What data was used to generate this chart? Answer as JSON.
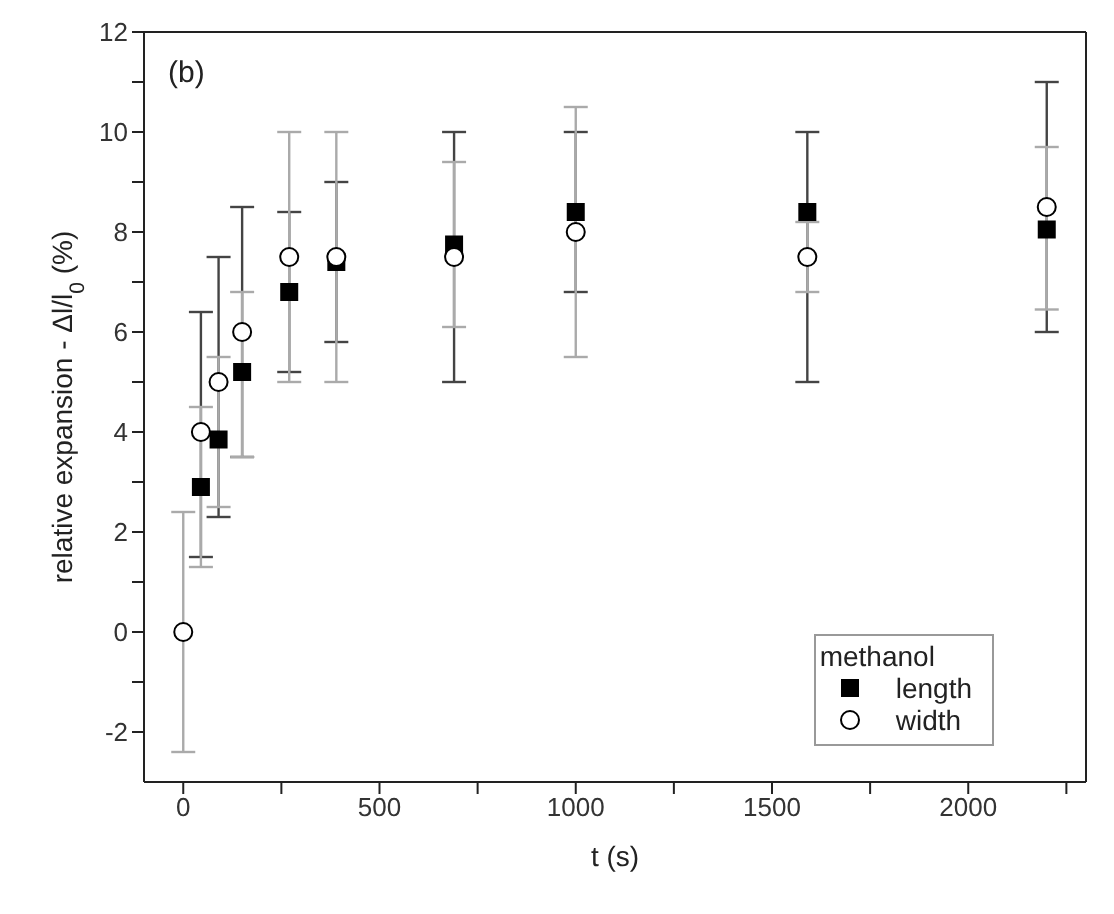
{
  "chart_data": {
    "type": "scatter",
    "xlabel": "t (s)",
    "ylabel": "relative expansion - Δl/l$_{0}$ (%)",
    "legend_title": "methanol",
    "legend": "bottom right",
    "annotations": [
      "(b)"
    ],
    "xlim": [
      -100,
      2300
    ],
    "xticks": [
      0,
      {
        "value": 250,
        "label": null
      },
      500,
      {
        "value": 750,
        "label": null
      },
      1000,
      {
        "value": 1250,
        "label": null
      },
      1500,
      {
        "value": 1750,
        "label": null
      },
      2000,
      {
        "value": 2250,
        "label": null
      }
    ],
    "ylim": [
      -3,
      12
    ],
    "yticks": [
      -2,
      {
        "value": -1,
        "label": null
      },
      0,
      {
        "value": 1,
        "label": null
      },
      2,
      {
        "value": 3,
        "label": null
      },
      4,
      {
        "value": 5,
        "label": null
      },
      6,
      {
        "value": 7,
        "label": null
      },
      8,
      {
        "value": 9,
        "label": null
      },
      10,
      {
        "value": 11,
        "label": null
      },
      12
    ],
    "grid": false,
    "series": [
      {
        "name": "length",
        "color": "#000000",
        "marker": "square",
        "x": [
          45,
          90,
          150,
          270,
          390,
          690,
          1000,
          1590,
          2200
        ],
        "values": [
          2.9,
          3.85,
          5.2,
          6.8,
          7.4,
          7.75,
          8.4,
          8.4,
          8.05
        ],
        "errors": [
          [
            1.5,
            6.4
          ],
          [
            2.3,
            7.5
          ],
          [
            3.5,
            8.5
          ],
          [
            5.2,
            8.4
          ],
          [
            5.8,
            9.0
          ],
          [
            5,
            10
          ],
          [
            6.8,
            10
          ],
          [
            5,
            10
          ],
          [
            6.0,
            11.0
          ]
        ]
      },
      {
        "name": "width",
        "color": "#ffffff",
        "marker": "circle",
        "x": [
          0,
          45,
          90,
          150,
          270,
          390,
          690,
          1000,
          1590,
          2200
        ],
        "values": [
          0,
          4.0,
          5.0,
          6.0,
          7.5,
          7.5,
          7.5,
          8.0,
          7.5,
          8.5
        ],
        "errors": [
          [
            -2.4,
            2.4
          ],
          [
            1.3,
            4.5
          ],
          [
            2.5,
            5.5
          ],
          [
            3.5,
            6.8
          ],
          [
            5,
            10
          ],
          [
            5,
            10
          ],
          [
            6.1,
            9.4
          ],
          [
            5.5,
            10.5
          ],
          [
            6.8,
            8.2
          ],
          [
            6.45,
            9.7
          ]
        ]
      }
    ]
  }
}
